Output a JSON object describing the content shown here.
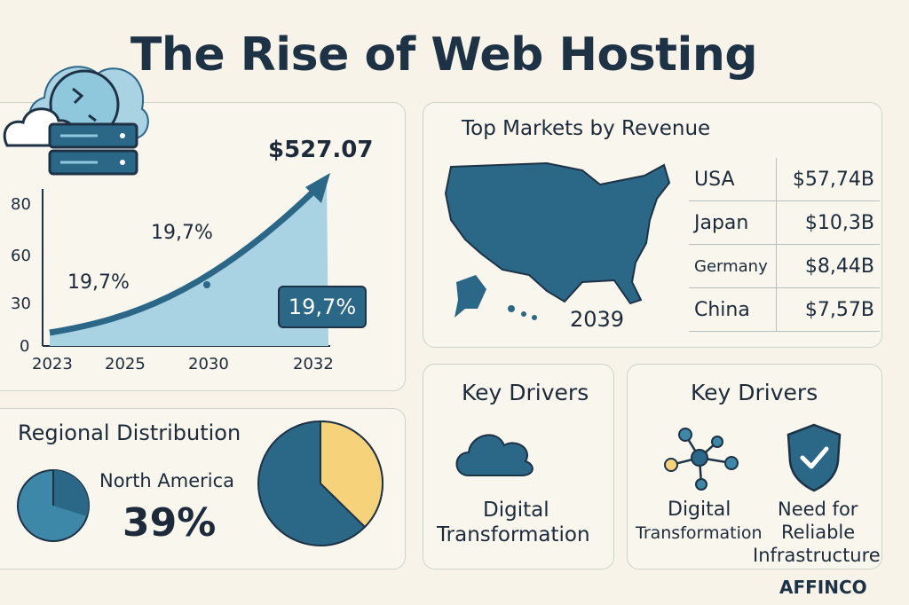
{
  "title": "The Rise of Web Hosting",
  "growth": {
    "peak_value": "$527.07",
    "y_ticks": [
      "80",
      "60",
      "30",
      "0"
    ],
    "x_ticks": [
      "2023",
      "2025",
      "2030",
      "2032"
    ],
    "pct_labels": [
      "19,7%",
      "19,7%"
    ],
    "pct_box": "19,7%"
  },
  "markets": {
    "heading": "Top Markets by Revenue",
    "map_year": "2039",
    "rows": [
      {
        "country": "USA",
        "revenue": "$57,74B"
      },
      {
        "country": "Japan",
        "revenue": "$10,3B"
      },
      {
        "country": "Germany",
        "revenue": "$8,44B"
      },
      {
        "country": "China",
        "revenue": "$7,57B"
      }
    ]
  },
  "regional": {
    "heading": "Regional Distribution",
    "region": "North America",
    "share": "39%"
  },
  "drivers_left": {
    "heading": "Key Drivers",
    "label_line1": "Digital",
    "label_line2": "Transformation"
  },
  "drivers_right": {
    "heading": "Key Drivers",
    "item1_line1": "Digital",
    "item1_line2": "Transformation",
    "item2_line1": "Need for",
    "item2_line2": "Reliable",
    "item2_line3": "Infrastructure"
  },
  "brand": "AFFINCO",
  "colors": {
    "dark": "#1d3245",
    "primary": "#2b6786",
    "light": "#8fc7dd",
    "accent": "#f6d27a"
  },
  "icons": [
    "cloud-server-icon",
    "us-map-icon",
    "cloud-icon",
    "network-icon",
    "shield-check-icon"
  ]
}
